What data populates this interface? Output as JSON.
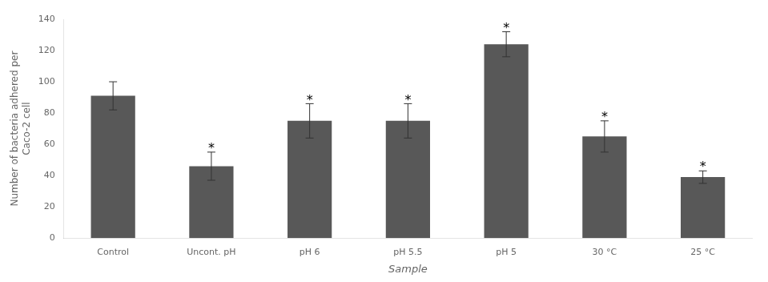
{
  "chart_data": {
    "type": "bar",
    "categories": [
      "Control",
      "Uncont. pH",
      "pH 6",
      "pH 5.5",
      "pH 5",
      "30 °C",
      "25 °C"
    ],
    "values": [
      91,
      46,
      75,
      75,
      124,
      65,
      39
    ],
    "errors": [
      9,
      9,
      11,
      11,
      8,
      10,
      4
    ],
    "color": "#585858",
    "xlabel": "Sample",
    "ylabel": "Number of bacteria adhered per\nCaco-2 cell",
    "ylim": [
      0,
      140
    ],
    "yticks": [
      0,
      20,
      40,
      60,
      80,
      100,
      120,
      140
    ],
    "grid": false,
    "annotations": [
      {
        "category": "Uncont. pH",
        "text": "*"
      },
      {
        "category": "pH 6",
        "text": "*"
      },
      {
        "category": "pH 5.5",
        "text": "*"
      },
      {
        "category": "pH 5",
        "text": "*"
      },
      {
        "category": "30 °C",
        "text": "*"
      },
      {
        "category": "25 °C",
        "text": "*"
      }
    ]
  }
}
